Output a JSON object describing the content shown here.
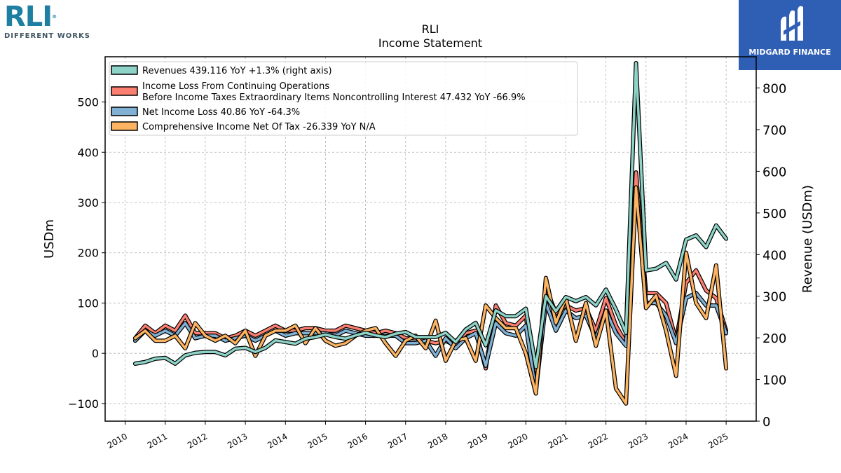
{
  "brand": {
    "logo_text": "RLI",
    "logo_reg": "®",
    "logo_tagline": "DIFFERENT WORKS",
    "watermark_text": "MIDGARD FINANCE"
  },
  "chart_data": {
    "type": "line",
    "title": "RLI",
    "subtitle": "Income Statement",
    "ylabel": "USDm",
    "ylabel_right": "Revenue (USDm)",
    "ylim": [
      -135,
      590
    ],
    "ylim_right": [
      0,
      875
    ],
    "yticks": [
      -100,
      0,
      100,
      200,
      300,
      400,
      500
    ],
    "yticks_right": [
      0,
      100,
      200,
      300,
      400,
      500,
      600,
      700,
      800
    ],
    "xlim": [
      2009.5,
      2025.75
    ],
    "xticks": [
      "2010",
      "2011",
      "2012",
      "2013",
      "2014",
      "2015",
      "2016",
      "2017",
      "2018",
      "2019",
      "2020",
      "2021",
      "2022",
      "2023",
      "2024",
      "2025"
    ],
    "grid": true,
    "legend_position": "top-left",
    "colors": {
      "revenues": "#8dd3c7",
      "income_loss": "#fb8072",
      "net_income": "#80b1d3",
      "comprehensive": "#fdb462"
    },
    "x": [
      2010.25,
      2010.5,
      2010.75,
      2011.0,
      2011.25,
      2011.5,
      2011.75,
      2012.0,
      2012.25,
      2012.5,
      2012.75,
      2013.0,
      2013.25,
      2013.5,
      2013.75,
      2014.0,
      2014.25,
      2014.5,
      2014.75,
      2015.0,
      2015.25,
      2015.5,
      2015.75,
      2016.0,
      2016.25,
      2016.5,
      2016.75,
      2017.0,
      2017.25,
      2017.5,
      2017.75,
      2018.0,
      2018.25,
      2018.5,
      2018.75,
      2019.0,
      2019.25,
      2019.5,
      2019.75,
      2020.0,
      2020.25,
      2020.5,
      2020.75,
      2021.0,
      2021.25,
      2021.5,
      2021.75,
      2022.0,
      2022.25,
      2022.5,
      2022.75,
      2023.0,
      2023.25,
      2023.5,
      2023.75,
      2024.0,
      2024.25,
      2024.5,
      2024.75,
      2025.0
    ],
    "series": [
      {
        "name": "Revenues  439.116 YoY +1.3% (right axis)",
        "axis": "right",
        "color": "#8dd3c7",
        "values": [
          138,
          142,
          150,
          152,
          138,
          158,
          164,
          166,
          166,
          158,
          174,
          176,
          166,
          176,
          194,
          190,
          186,
          198,
          202,
          208,
          202,
          198,
          206,
          212,
          206,
          202,
          210,
          214,
          202,
          202,
          202,
          212,
          190,
          220,
          236,
          182,
          266,
          252,
          252,
          270,
          130,
          300,
          264,
          298,
          288,
          298,
          278,
          316,
          268,
          212,
          860,
          362,
          366,
          380,
          340,
          436,
          446,
          418,
          470,
          438
        ]
      },
      {
        "name": "Income Loss From Continuing Operations\nBefore Income Taxes Extraordinary Items Noncontrolling Interest  47.432 YoY -66.9%",
        "axis": "left",
        "color": "#fb8072",
        "values": [
          30,
          55,
          40,
          55,
          45,
          75,
          40,
          40,
          40,
          30,
          35,
          45,
          35,
          45,
          55,
          45,
          45,
          50,
          50,
          45,
          45,
          55,
          50,
          45,
          40,
          45,
          40,
          30,
          30,
          25,
          20,
          25,
          15,
          40,
          45,
          -30,
          95,
          60,
          55,
          75,
          -75,
          130,
          80,
          95,
          85,
          90,
          45,
          110,
          55,
          20,
          360,
          120,
          120,
          100,
          25,
          140,
          165,
          125,
          110,
          45
        ]
      },
      {
        "name": "Net Income Loss  40.86 YoY -64.3%",
        "axis": "left",
        "color": "#80b1d3",
        "values": [
          25,
          45,
          35,
          45,
          35,
          60,
          30,
          35,
          35,
          25,
          30,
          35,
          25,
          35,
          45,
          35,
          40,
          40,
          40,
          40,
          35,
          45,
          40,
          35,
          35,
          35,
          35,
          20,
          20,
          25,
          -5,
          30,
          10,
          30,
          40,
          -25,
          60,
          40,
          35,
          55,
          -75,
          100,
          45,
          85,
          70,
          75,
          30,
          85,
          40,
          15,
          330,
          100,
          100,
          75,
          20,
          110,
          120,
          95,
          95,
          40
        ]
      },
      {
        "name": "Comprehensive Income Net Of Tax  -26.339 YoY N/A",
        "axis": "left",
        "color": "#fdb462",
        "values": [
          30,
          45,
          25,
          25,
          35,
          10,
          60,
          35,
          25,
          35,
          20,
          45,
          -5,
          35,
          45,
          45,
          55,
          20,
          50,
          25,
          15,
          20,
          35,
          45,
          50,
          20,
          -5,
          25,
          35,
          10,
          65,
          -15,
          25,
          30,
          -15,
          95,
          70,
          50,
          50,
          0,
          -80,
          150,
          60,
          110,
          25,
          100,
          15,
          85,
          -70,
          -100,
          330,
          90,
          115,
          45,
          -45,
          200,
          100,
          70,
          175,
          -30
        ]
      }
    ]
  }
}
